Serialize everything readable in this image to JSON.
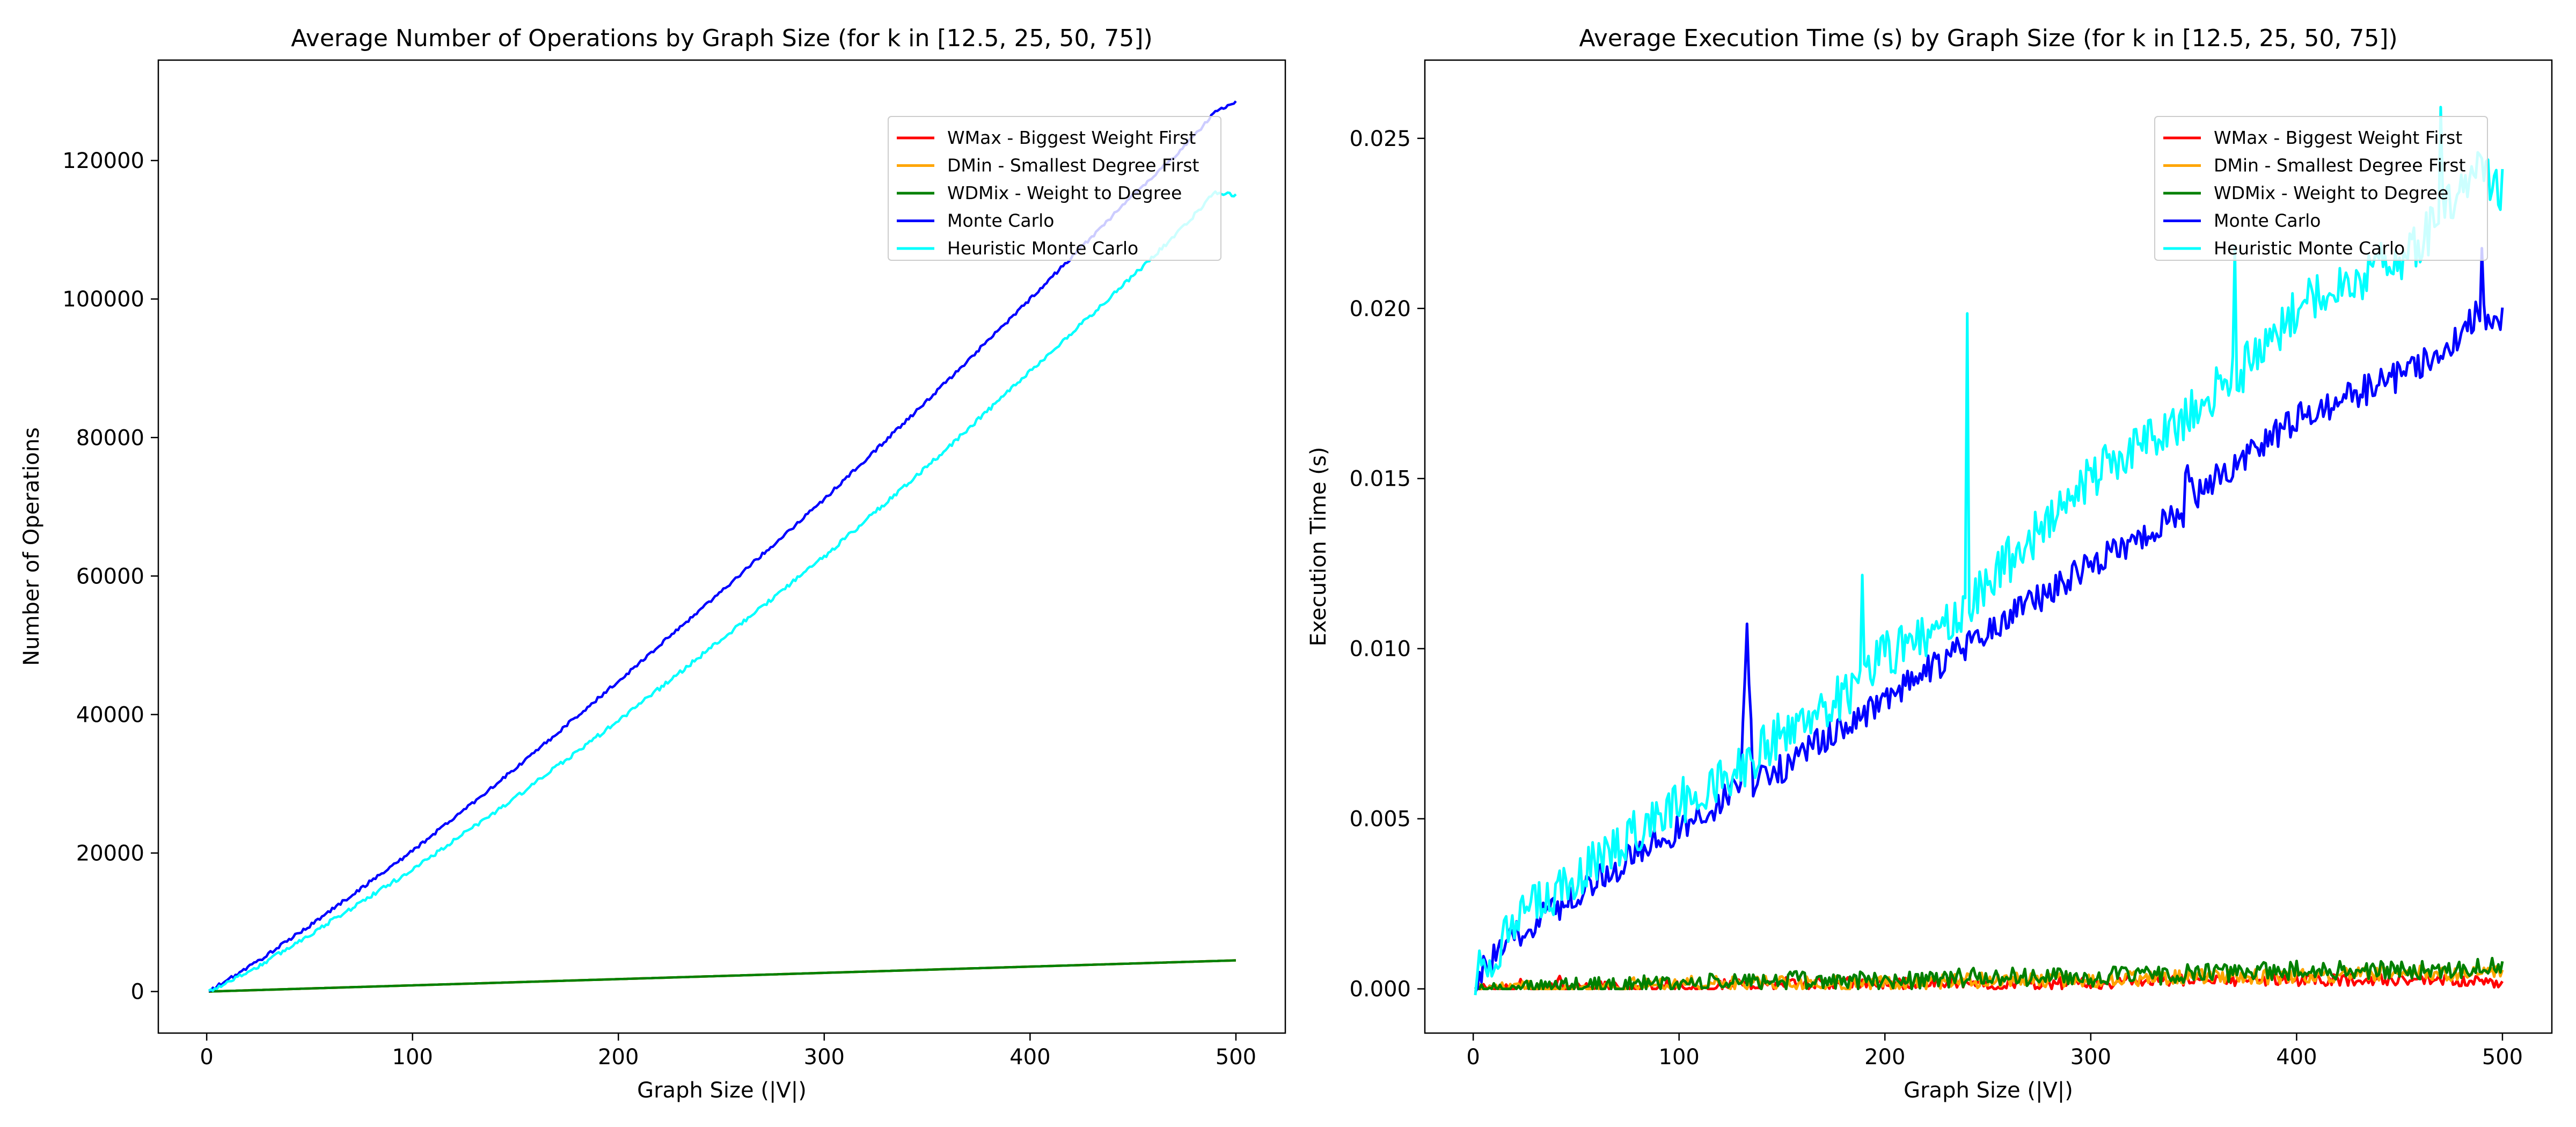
{
  "chart_data": [
    {
      "type": "line",
      "title": "Average Number of Operations by Graph Size (for k in [12.5, 25, 50, 75])",
      "xlabel": "Graph Size (|V|)",
      "ylabel": "Number of Operations",
      "xlim": [
        -23.5,
        524
      ],
      "ylim": [
        -6000,
        134500
      ],
      "xticks": [
        0,
        100,
        200,
        300,
        400,
        500
      ],
      "yticks": [
        0,
        20000,
        40000,
        60000,
        80000,
        100000,
        120000
      ],
      "legend": "top-right",
      "series": [
        {
          "name": "WMax - Biggest Weight First",
          "color": "#ff0000",
          "x": [
            1,
            500
          ],
          "y": [
            0,
            4500
          ]
        },
        {
          "name": "DMin - Smallest Degree First",
          "color": "#ffa500",
          "x": [
            1,
            500
          ],
          "y": [
            0,
            4500
          ]
        },
        {
          "name": "WDMix - Weight to Degree",
          "color": "#008000",
          "x": [
            1,
            500
          ],
          "y": [
            0,
            4500
          ]
        },
        {
          "name": "Monte Carlo",
          "color": "#0000ff",
          "x": [
            1,
            25,
            50,
            75,
            100,
            150,
            200,
            250,
            300,
            350,
            400,
            450,
            475,
            490,
            500
          ],
          "y": [
            0,
            4400,
            9500,
            14900,
            20300,
            32200,
            44800,
            57800,
            71100,
            85300,
            100000,
            115000,
            122000,
            127000,
            128500
          ]
        },
        {
          "name": "Heuristic Monte Carlo",
          "color": "#00ffff",
          "x": [
            1,
            25,
            50,
            75,
            100,
            150,
            200,
            250,
            300,
            350,
            400,
            450,
            475,
            490,
            500
          ],
          "y": [
            0,
            3600,
            8200,
            12900,
            17600,
            28000,
            39100,
            50800,
            62800,
            75800,
            89500,
            103300,
            110500,
            115500,
            115000
          ]
        }
      ]
    },
    {
      "type": "line",
      "title": "Average Execution Time (s) by Graph Size (for k in [12.5, 25, 50, 75])",
      "xlabel": "Graph Size (|V|)",
      "ylabel": "Execution Time (s)",
      "xlim": [
        -23.5,
        524
      ],
      "ylim": [
        -0.0013,
        0.0273
      ],
      "xticks": [
        0,
        100,
        200,
        300,
        400,
        500
      ],
      "yticks": [
        0.0,
        0.005,
        0.01,
        0.015,
        0.02,
        0.025
      ],
      "ytick_labels": [
        "0.000",
        "0.005",
        "0.010",
        "0.015",
        "0.020",
        "0.025"
      ],
      "legend": "top-right",
      "series": [
        {
          "name": "WMax - Biggest Weight First",
          "color": "#ff0000",
          "x": [
            1,
            20,
            22,
            30,
            40,
            42,
            44,
            60,
            100,
            150,
            200,
            250,
            300,
            350,
            400,
            450,
            500
          ],
          "y": [
            0,
            0,
            0.0003,
            0,
            0.0002,
            0.0005,
            0,
            0.0001,
            0.0001,
            0.0002,
            0.0002,
            0.0002,
            0.0002,
            0.0003,
            0.0003,
            0.0003,
            0.0002
          ]
        },
        {
          "name": "DMin - Smallest Degree First",
          "color": "#ffa500",
          "x": [
            1,
            50,
            100,
            150,
            200,
            250,
            300,
            350,
            400,
            450,
            500
          ],
          "y": [
            0,
            0.0001,
            0.0002,
            0.0002,
            0.0002,
            0.0003,
            0.0003,
            0.0004,
            0.0004,
            0.0005,
            0.0005
          ]
        },
        {
          "name": "WDMix - Weight to Degree",
          "color": "#008000",
          "x": [
            1,
            50,
            100,
            150,
            200,
            250,
            300,
            350,
            400,
            450,
            500
          ],
          "y": [
            0,
            0.0001,
            0.0002,
            0.0003,
            0.0003,
            0.0004,
            0.0004,
            0.0005,
            0.0006,
            0.0006,
            0.0007
          ]
        },
        {
          "name": "Monte Carlo",
          "color": "#0000ff",
          "x": [
            1,
            25,
            50,
            75,
            100,
            125,
            130,
            133,
            136,
            150,
            200,
            250,
            300,
            345,
            346,
            350,
            400,
            450,
            475,
            489,
            490,
            491,
            500
          ],
          "y": [
            0.0003,
            0.0018,
            0.0028,
            0.0038,
            0.0047,
            0.0057,
            0.0062,
            0.0107,
            0.006,
            0.0065,
            0.0085,
            0.0105,
            0.0125,
            0.014,
            0.0155,
            0.0145,
            0.0168,
            0.018,
            0.019,
            0.02,
            0.0222,
            0.0198,
            0.0197
          ]
        },
        {
          "name": "Heuristic Monte Carlo",
          "color": "#00ffff",
          "x": [
            1,
            25,
            50,
            75,
            100,
            125,
            150,
            188,
            189,
            190,
            200,
            239,
            240,
            241,
            250,
            300,
            350,
            369,
            370,
            371,
            400,
            450,
            469,
            470,
            471,
            490,
            500
          ],
          "y": [
            0.0004,
            0.0022,
            0.0032,
            0.0045,
            0.0055,
            0.0063,
            0.0075,
            0.009,
            0.0115,
            0.0092,
            0.0098,
            0.011,
            0.0202,
            0.0112,
            0.012,
            0.015,
            0.017,
            0.018,
            0.0215,
            0.018,
            0.02,
            0.0215,
            0.0225,
            0.0259,
            0.023,
            0.024,
            0.0235
          ]
        }
      ]
    }
  ]
}
